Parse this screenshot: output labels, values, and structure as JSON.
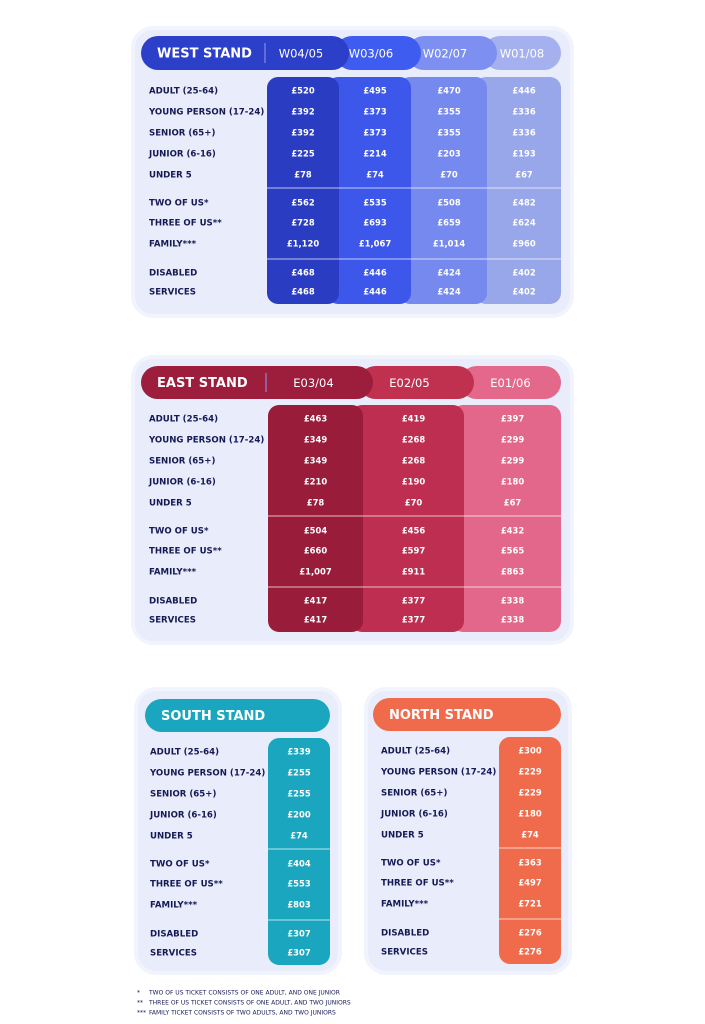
{
  "stands": [
    {
      "name": "WEST STAND",
      "columns": [
        "W04/05",
        "W03/06",
        "W02/07",
        "W01/08"
      ],
      "groups": [
        [
          {
            "label": "ADULT (25-64)",
            "prices": [
              "£520",
              "£495",
              "£470",
              "£446"
            ]
          },
          {
            "label": "YOUNG PERSON (17-24)",
            "prices": [
              "£392",
              "£373",
              "£355",
              "£336"
            ]
          },
          {
            "label": "SENIOR (65+)",
            "prices": [
              "£392",
              "£373",
              "£355",
              "£336"
            ]
          },
          {
            "label": "JUNIOR (6-16)",
            "prices": [
              "£225",
              "£214",
              "£203",
              "£193"
            ]
          },
          {
            "label": "UNDER 5",
            "prices": [
              "£78",
              "£74",
              "£70",
              "£67"
            ]
          }
        ],
        [
          {
            "label": "TWO OF US*",
            "prices": [
              "£562",
              "£535",
              "£508",
              "£482"
            ]
          },
          {
            "label": "THREE OF US**",
            "prices": [
              "£728",
              "£693",
              "£659",
              "£624"
            ]
          },
          {
            "label": "FAMILY***",
            "prices": [
              "£1,120",
              "£1,067",
              "£1,014",
              "£960"
            ]
          }
        ],
        [
          {
            "label": "DISABLED",
            "prices": [
              "£468",
              "£446",
              "£424",
              "£402"
            ]
          },
          {
            "label": "SERVICES",
            "prices": [
              "£468",
              "£446",
              "£424",
              "£402"
            ]
          }
        ]
      ]
    },
    {
      "name": "EAST STAND",
      "columns": [
        "E03/04",
        "E02/05",
        "E01/06"
      ],
      "groups": [
        [
          {
            "label": "ADULT (25-64)",
            "prices": [
              "£463",
              "£419",
              "£397"
            ]
          },
          {
            "label": "YOUNG PERSON (17-24)",
            "prices": [
              "£349",
              "£268",
              "£299"
            ]
          },
          {
            "label": "SENIOR (65+)",
            "prices": [
              "£349",
              "£268",
              "£299"
            ]
          },
          {
            "label": "JUNIOR (6-16)",
            "prices": [
              "£210",
              "£190",
              "£180"
            ]
          },
          {
            "label": "UNDER 5",
            "prices": [
              "£78",
              "£70",
              "£67"
            ]
          }
        ],
        [
          {
            "label": "TWO OF US*",
            "prices": [
              "£504",
              "£456",
              "£432"
            ]
          },
          {
            "label": "THREE OF US**",
            "prices": [
              "£660",
              "£597",
              "£565"
            ]
          },
          {
            "label": "FAMILY***",
            "prices": [
              "£1,007",
              "£911",
              "£863"
            ]
          }
        ],
        [
          {
            "label": "DISABLED",
            "prices": [
              "£417",
              "£377",
              "£338"
            ]
          },
          {
            "label": "SERVICES",
            "prices": [
              "£417",
              "£377",
              "£338"
            ]
          }
        ]
      ]
    },
    {
      "name": "SOUTH STAND",
      "groups": [
        [
          {
            "label": "ADULT (25-64)",
            "prices": [
              "£339"
            ]
          },
          {
            "label": "YOUNG PERSON (17-24)",
            "prices": [
              "£255"
            ]
          },
          {
            "label": "SENIOR (65+)",
            "prices": [
              "£255"
            ]
          },
          {
            "label": "JUNIOR (6-16)",
            "prices": [
              "£200"
            ]
          },
          {
            "label": "UNDER 5",
            "prices": [
              "£74"
            ]
          }
        ],
        [
          {
            "label": "TWO OF US*",
            "prices": [
              "£404"
            ]
          },
          {
            "label": "THREE OF US**",
            "prices": [
              "£553"
            ]
          },
          {
            "label": "FAMILY***",
            "prices": [
              "£803"
            ]
          }
        ],
        [
          {
            "label": "DISABLED",
            "prices": [
              "£307"
            ]
          },
          {
            "label": "SERVICES",
            "prices": [
              "£307"
            ]
          }
        ]
      ]
    },
    {
      "name": "NORTH STAND",
      "groups": [
        [
          {
            "label": "ADULT (25-64)",
            "prices": [
              "£300"
            ]
          },
          {
            "label": "YOUNG PERSON (17-24)",
            "prices": [
              "£229"
            ]
          },
          {
            "label": "SENIOR (65+)",
            "prices": [
              "£229"
            ]
          },
          {
            "label": "JUNIOR (6-16)",
            "prices": [
              "£180"
            ]
          },
          {
            "label": "UNDER 5",
            "prices": [
              "£74"
            ]
          }
        ],
        [
          {
            "label": "TWO OF US*",
            "prices": [
              "£363"
            ]
          },
          {
            "label": "THREE OF US**",
            "prices": [
              "£497"
            ]
          },
          {
            "label": "FAMILY***",
            "prices": [
              "£721"
            ]
          }
        ],
        [
          {
            "label": "DISABLED",
            "prices": [
              "£276"
            ]
          },
          {
            "label": "SERVICES",
            "prices": [
              "£276"
            ]
          }
        ]
      ]
    }
  ],
  "footnotes": [
    {
      "marker": "*",
      "text": "TWO OF US TICKET CONSISTS OF ONE ADULT, AND ONE JUNIOR"
    },
    {
      "marker": "**",
      "text": "THREE OF US TICKET CONSISTS OF ONE ADULT, AND TWO JUNIORS"
    },
    {
      "marker": "***",
      "text": "FAMILY TICKET CONSISTS OF TWO ADULTS, AND TWO JUNIORS"
    }
  ]
}
